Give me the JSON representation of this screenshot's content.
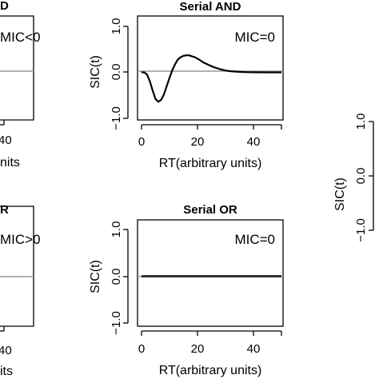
{
  "chart_data": [
    {
      "type": "line",
      "title": "Serial AND",
      "xlabel": "RT(arbitrary units)",
      "ylabel": "SIC(t)",
      "annotation": "MIC=0",
      "xlim": [
        0,
        50
      ],
      "ylim": [
        -1.0,
        1.0
      ],
      "xticks": [
        "0",
        "20",
        "40"
      ],
      "yticks": [
        "−1.0",
        "0.0",
        "1.0"
      ],
      "series": [
        {
          "x": [
            0,
            1,
            2,
            3,
            4,
            5,
            6,
            7,
            8,
            9,
            10,
            11,
            12,
            13,
            14,
            15,
            16,
            17,
            18,
            19,
            20,
            21,
            22,
            24,
            26,
            28,
            30,
            32,
            34,
            36,
            38,
            40,
            44,
            48,
            50
          ],
          "y": [
            0,
            0,
            -0.05,
            -0.2,
            -0.4,
            -0.58,
            -0.64,
            -0.6,
            -0.48,
            -0.3,
            -0.12,
            0.05,
            0.18,
            0.28,
            0.33,
            0.36,
            0.37,
            0.37,
            0.35,
            0.33,
            0.3,
            0.26,
            0.22,
            0.16,
            0.11,
            0.07,
            0.04,
            0.025,
            0.015,
            0.008,
            0.004,
            0.002,
            0.0,
            0.0,
            0.0
          ]
        }
      ]
    },
    {
      "type": "line",
      "title": "Serial OR",
      "xlabel": "RT(arbitrary units)",
      "ylabel": "SIC(t)",
      "annotation": "MIC=0",
      "xlim": [
        0,
        50
      ],
      "ylim": [
        -1.0,
        1.0
      ],
      "xticks": [
        "0",
        "20",
        "40"
      ],
      "yticks": [
        "−1.0",
        "0.0",
        "1.0"
      ],
      "series": [
        {
          "x": [
            0,
            50
          ],
          "y": [
            0,
            0
          ]
        }
      ]
    },
    {
      "type": "line",
      "title": "",
      "xlabel": "",
      "ylabel": "",
      "annotation": "MIC<0",
      "xticks": [
        "40"
      ],
      "xlabel_fragment": "nits",
      "series": []
    },
    {
      "type": "line",
      "title": "",
      "xlabel": "",
      "ylabel": "",
      "annotation": "MIC>0",
      "xticks": [
        "40"
      ],
      "xlabel_fragment": "its",
      "series": []
    },
    {
      "type": "line",
      "title": "",
      "xlabel": "",
      "ylabel": "SIC(t)",
      "yticks": [
        "−1.0",
        "0.0",
        "1.0"
      ],
      "series": []
    }
  ],
  "partial": {
    "title_top": "D",
    "title_bottom": "R"
  }
}
